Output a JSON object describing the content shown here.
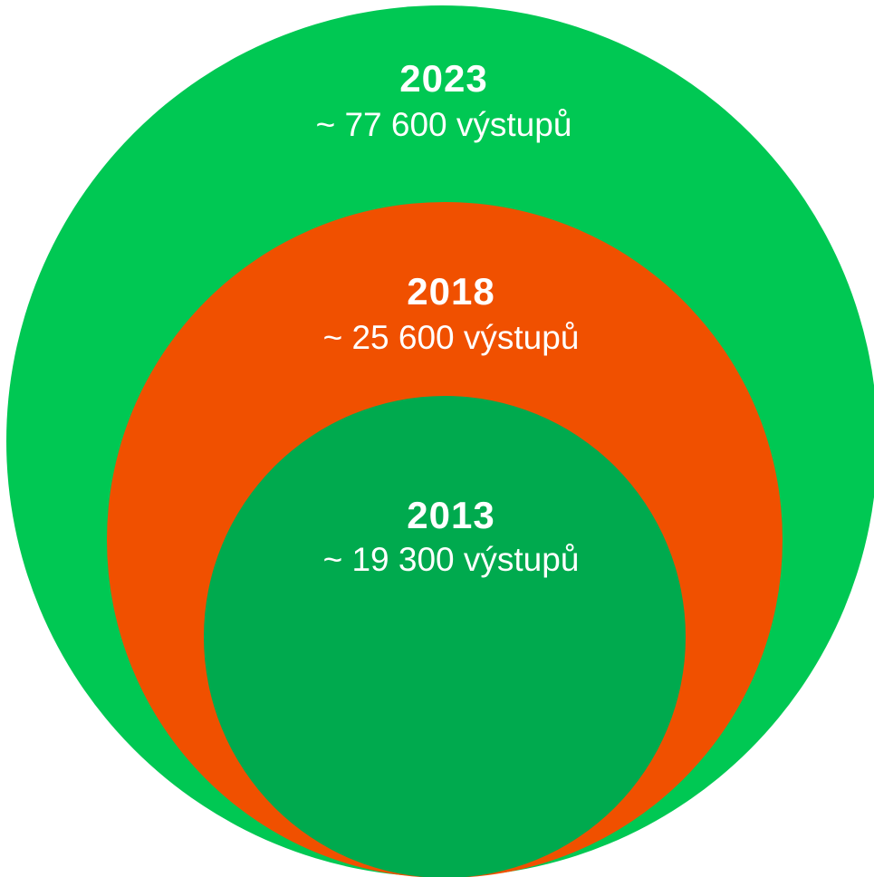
{
  "nodes": [
    {
      "label": "2023",
      "sublabel": "~ 77 600 výstupů"
    },
    {
      "label": "2018",
      "sublabel": "~ 25 600 výstupů"
    },
    {
      "label": "2013",
      "sublabel": "~ 19 300 výstupů"
    }
  ]
}
